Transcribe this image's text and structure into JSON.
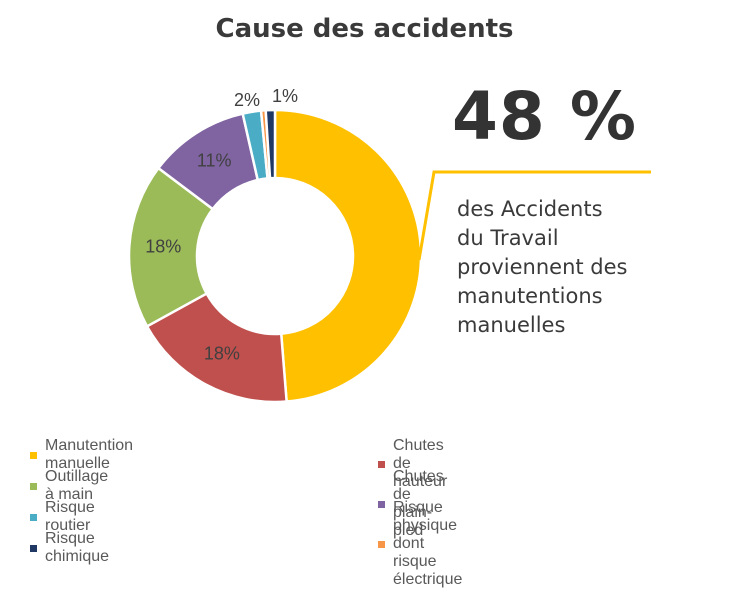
{
  "chart_data": {
    "type": "pie",
    "title": "Cause des accidents",
    "categories": [
      "Manutention manuelle",
      "Chutes de hauteur",
      "Outillage à main",
      "Chutes de plain-pied",
      "Risque routier",
      "Risque physique dont risque électrique",
      "Risque chimique"
    ],
    "values": [
      48,
      18,
      18,
      11,
      2,
      0.5,
      1
    ],
    "data_labels": [
      "",
      "18%",
      "18%",
      "11%",
      "2%",
      "",
      "1%"
    ],
    "colors": [
      "#FFC000",
      "#C0504D",
      "#9BBB59",
      "#8064A2",
      "#4BACC6",
      "#F79646",
      "#1F3864"
    ],
    "legend_position": "bottom",
    "annotation": {
      "big_value": "48 %",
      "text_lines": [
        "des Accidents",
        "du Travail",
        "proviennent des",
        "manutentions",
        "manuelles"
      ]
    }
  }
}
